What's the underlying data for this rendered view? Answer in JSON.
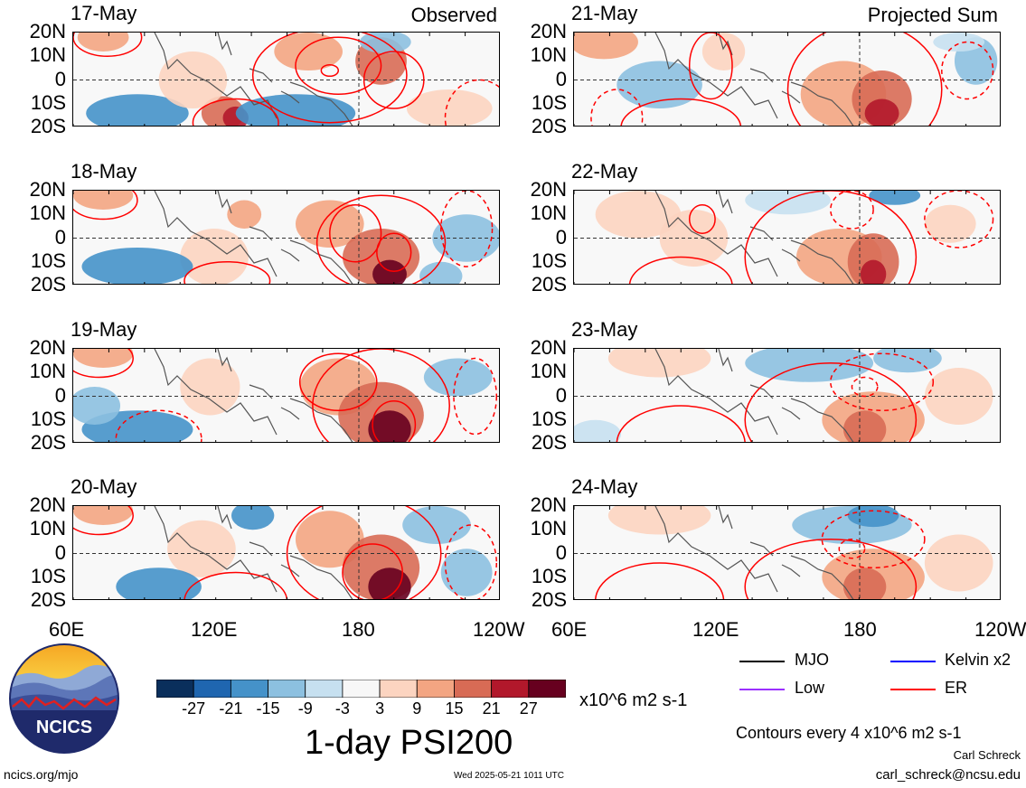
{
  "colors": {
    "mjo": "#000000",
    "kelvin": "#0000ff",
    "low": "#9b30ff",
    "er": "#ff0000",
    "scale": [
      "#0a2f5c",
      "#1f66b0",
      "#4592c9",
      "#8cc0e0",
      "#c6e0f0",
      "#f7f7f7",
      "#fcd4c0",
      "#f3a582",
      "#d86b55",
      "#b2182b",
      "#67001f"
    ]
  },
  "panels": [
    {
      "date": "17-May",
      "label": "Observed"
    },
    {
      "date": "18-May",
      "label": ""
    },
    {
      "date": "19-May",
      "label": ""
    },
    {
      "date": "20-May",
      "label": ""
    },
    {
      "date": "21-May",
      "label": "Projected Sum"
    },
    {
      "date": "22-May",
      "label": ""
    },
    {
      "date": "23-May",
      "label": ""
    },
    {
      "date": "24-May",
      "label": ""
    }
  ],
  "chart_data": {
    "type": "heatmap",
    "title": "1-day PSI200",
    "units": "x10^6 m2 s-1",
    "lat_ticks": [
      "20N",
      "10N",
      "0",
      "10S",
      "20S"
    ],
    "lon_ticks": [
      "60E",
      "120E",
      "180",
      "120W"
    ],
    "colorbar_ticks": [
      "-27",
      "-21",
      "-15",
      "-9",
      "-3",
      "3",
      "9",
      "15",
      "21",
      "27"
    ],
    "contour_note": "Contours every 4 x10^6 m2 s-1",
    "legend": [
      {
        "name": "MJO",
        "color": "#000000"
      },
      {
        "name": "Kelvin x2",
        "color": "#0000ff"
      },
      {
        "name": "Low",
        "color": "#9b30ff"
      },
      {
        "name": "ER",
        "color": "#ff0000"
      }
    ]
  },
  "footer": {
    "site": "ncics.org/mjo",
    "timestamp": "Wed 2025-05-21 1011 UTC",
    "author": "Carl Schreck",
    "email": "carl_schreck@ncsu.edu",
    "logo_text": "NCICS"
  }
}
